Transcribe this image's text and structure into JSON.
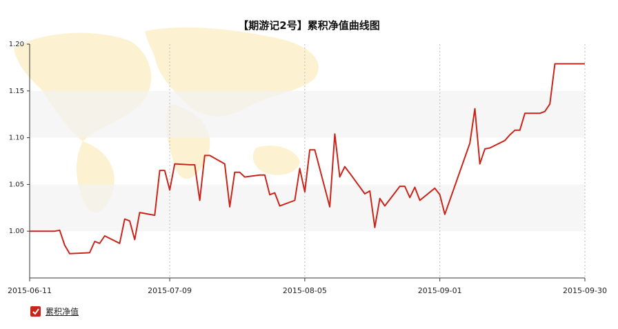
{
  "chart_data": {
    "type": "line",
    "title": "【期游记2号】累积净值曲线图",
    "xlabel": "",
    "ylabel": "",
    "ylim": [
      0.95,
      1.2
    ],
    "yticks": [
      "1.00",
      "1.05",
      "1.10",
      "1.15",
      "1.20"
    ],
    "xticks": [
      "2015-06-11",
      "2015-07-09",
      "2015-08-05",
      "2015-09-01",
      "2015-09-30"
    ],
    "legend_position": "bottom-left",
    "grid": "alternating horizontal bands, dotted vertical lines at x ticks",
    "series": [
      {
        "name": "累积净值",
        "color": "#c8241a",
        "x": [
          "2015-06-11",
          "2015-06-12",
          "2015-06-15",
          "2015-06-16",
          "2015-06-17",
          "2015-06-18",
          "2015-06-19",
          "2015-06-23",
          "2015-06-24",
          "2015-06-25",
          "2015-06-26",
          "2015-06-29",
          "2015-06-30",
          "2015-07-01",
          "2015-07-02",
          "2015-07-03",
          "2015-07-06",
          "2015-07-07",
          "2015-07-08",
          "2015-07-09",
          "2015-07-10",
          "2015-07-13",
          "2015-07-14",
          "2015-07-15",
          "2015-07-16",
          "2015-07-17",
          "2015-07-20",
          "2015-07-21",
          "2015-07-22",
          "2015-07-23",
          "2015-07-24",
          "2015-07-27",
          "2015-07-28",
          "2015-07-29",
          "2015-07-30",
          "2015-07-31",
          "2015-08-03",
          "2015-08-04",
          "2015-08-05",
          "2015-08-06",
          "2015-08-07",
          "2015-08-10",
          "2015-08-11",
          "2015-08-12",
          "2015-08-13",
          "2015-08-14",
          "2015-08-17",
          "2015-08-18",
          "2015-08-19",
          "2015-08-20",
          "2015-08-21",
          "2015-08-24",
          "2015-08-25",
          "2015-08-26",
          "2015-08-27",
          "2015-08-28",
          "2015-08-31",
          "2015-09-01",
          "2015-09-02",
          "2015-09-07",
          "2015-09-08",
          "2015-09-09",
          "2015-09-10",
          "2015-09-11",
          "2015-09-14",
          "2015-09-15",
          "2015-09-16",
          "2015-09-17",
          "2015-09-18",
          "2015-09-21",
          "2015-09-22",
          "2015-09-23",
          "2015-09-24",
          "2015-09-25",
          "2015-09-28",
          "2015-09-29",
          "2015-09-30"
        ],
        "values": [
          1.0,
          1.0,
          1.0,
          1.0,
          1.001,
          0.985,
          0.976,
          0.977,
          0.989,
          0.987,
          0.995,
          0.987,
          1.013,
          1.011,
          0.991,
          1.02,
          1.017,
          1.065,
          1.065,
          1.044,
          1.072,
          1.071,
          1.071,
          1.033,
          1.081,
          1.081,
          1.072,
          1.026,
          1.063,
          1.063,
          1.058,
          1.06,
          1.06,
          1.039,
          1.041,
          1.027,
          1.033,
          1.067,
          1.042,
          1.087,
          1.087,
          1.026,
          1.104,
          1.058,
          1.069,
          1.062,
          1.04,
          1.043,
          1.004,
          1.035,
          1.027,
          1.048,
          1.048,
          1.036,
          1.047,
          1.033,
          1.046,
          1.039,
          1.018,
          1.094,
          1.131,
          1.072,
          1.088,
          1.089,
          1.097,
          1.103,
          1.108,
          1.108,
          1.126,
          1.126,
          1.128,
          1.136,
          1.179,
          1.179,
          1.179,
          1.179,
          1.179
        ]
      }
    ]
  }
}
